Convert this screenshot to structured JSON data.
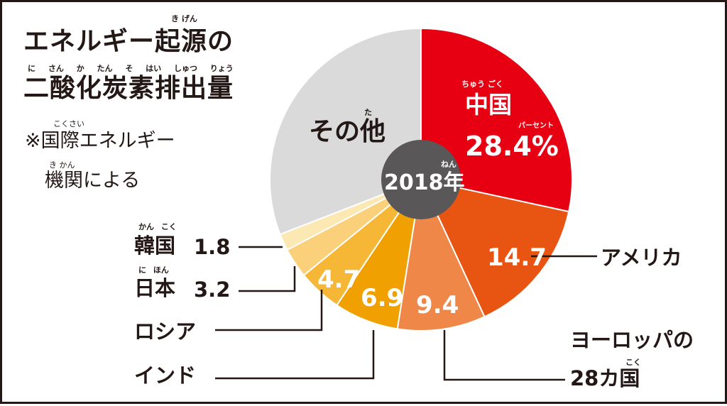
{
  "title": {
    "line1": "エネルギー起源の",
    "line2": "二酸化炭素排出量",
    "ruby_kigen": "き げん",
    "ruby_line2": "に さん か たん そ はい しゅつ りょう"
  },
  "source_note": {
    "line1": "※国際エネルギー",
    "line2": "機関による",
    "ruby_kokusai": "こくさい",
    "ruby_kikan": "き かん"
  },
  "center_label": "2018年",
  "center_ruby": "ねん",
  "colors": {
    "china": "#e60012",
    "usa": "#e85513",
    "europe": "#ee8747",
    "india": "#f0a000",
    "russia": "#f6b737",
    "japan": "#fad17a",
    "korea": "#fce8b3",
    "other": "#dadada",
    "center": "#595757",
    "ink": "#231815"
  },
  "chart_data": {
    "type": "pie",
    "unit": "%",
    "year": "2018年",
    "slices": [
      {
        "name": "中国",
        "value": 28.4,
        "label": "28.4%",
        "ruby": "ちゅう ごく",
        "unit_ruby": "パーセント"
      },
      {
        "name": "アメリカ",
        "value": 14.7,
        "label": "14.7"
      },
      {
        "name": "ヨーロッパの28カ国",
        "line1": "ヨーロッパの",
        "line2": "28カ国",
        "ruby": "こく",
        "value": 9.4,
        "label": "9.4"
      },
      {
        "name": "インド",
        "value": 6.9,
        "label": "6.9"
      },
      {
        "name": "ロシア",
        "value": 4.7,
        "label": "4.7"
      },
      {
        "name": "日本",
        "value": 3.2,
        "label": "3.2",
        "ruby": "に ほん"
      },
      {
        "name": "韓国",
        "value": 1.8,
        "label": "1.8",
        "ruby": "かん こく"
      },
      {
        "name": "その他",
        "value": 30.9,
        "ruby": "た"
      }
    ]
  }
}
